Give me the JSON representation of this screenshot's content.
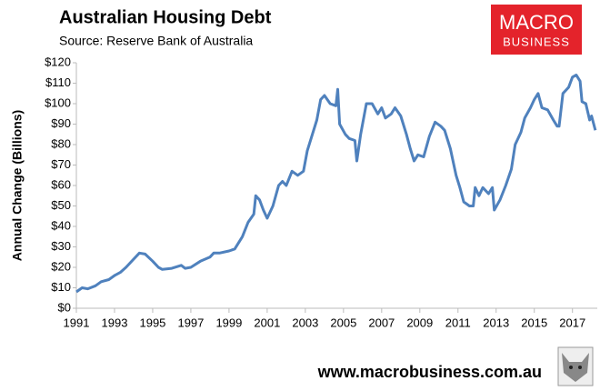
{
  "chart_data": {
    "type": "line",
    "title": "Australian Housing Debt",
    "subtitle": "Source: Reserve Bank of Australia",
    "y_label": "Annual Change (Billions)",
    "logo": [
      "MACRO",
      "BUSINESS"
    ],
    "footer": "www.macrobusiness.com.au",
    "xlim": [
      1991,
      2018.3
    ],
    "xticks": [
      1991,
      1993,
      1995,
      1997,
      1999,
      2001,
      2003,
      2005,
      2007,
      2009,
      2011,
      2013,
      2015,
      2017
    ],
    "ylim": [
      0,
      120
    ],
    "yticks": [
      {
        "value": 0,
        "label": "$0"
      },
      {
        "value": 10,
        "label": "$10"
      },
      {
        "value": 20,
        "label": "$20"
      },
      {
        "value": 30,
        "label": "$30"
      },
      {
        "value": 40,
        "label": "$40"
      },
      {
        "value": 50,
        "label": "$50"
      },
      {
        "value": 60,
        "label": "$60"
      },
      {
        "value": 70,
        "label": "$70"
      },
      {
        "value": 80,
        "label": "$80"
      },
      {
        "value": 90,
        "label": "$90"
      },
      {
        "value": 100,
        "label": "$100"
      },
      {
        "value": 110,
        "label": "$110"
      },
      {
        "value": 120,
        "label": "$120"
      }
    ],
    "grid": false,
    "color": "#4f81bd",
    "x": [
      1991.0,
      1991.3,
      1991.6,
      1992.0,
      1992.3,
      1992.7,
      1993.0,
      1993.3,
      1993.6,
      1994.0,
      1994.3,
      1994.6,
      1995.0,
      1995.3,
      1995.5,
      1996.0,
      1996.5,
      1996.7,
      1997.0,
      1997.5,
      1998.0,
      1998.2,
      1998.5,
      1999.0,
      1999.3,
      1999.7,
      2000.0,
      2000.3,
      2000.4,
      2000.6,
      2000.8,
      2001.0,
      2001.3,
      2001.6,
      2001.8,
      2002.0,
      2002.3,
      2002.6,
      2002.9,
      2003.1,
      2003.3,
      2003.6,
      2003.8,
      2004.0,
      2004.3,
      2004.6,
      2004.7,
      2004.8,
      2005.1,
      2005.3,
      2005.6,
      2005.7,
      2005.9,
      2006.2,
      2006.5,
      2006.8,
      2007.0,
      2007.2,
      2007.5,
      2007.7,
      2008.0,
      2008.3,
      2008.5,
      2008.7,
      2008.9,
      2009.2,
      2009.5,
      2009.8,
      2010.1,
      2010.3,
      2010.6,
      2010.9,
      2011.1,
      2011.3,
      2011.6,
      2011.8,
      2011.9,
      2012.1,
      2012.3,
      2012.6,
      2012.8,
      2012.9,
      2013.2,
      2013.5,
      2013.8,
      2014.0,
      2014.3,
      2014.5,
      2014.8,
      2015.0,
      2015.2,
      2015.4,
      2015.7,
      2016.0,
      2016.2,
      2016.3,
      2016.5,
      2016.8,
      2017.0,
      2017.2,
      2017.4,
      2017.5,
      2017.7,
      2017.9,
      2018.0,
      2018.2
    ],
    "values": [
      8,
      10,
      9.5,
      11,
      13,
      14,
      16,
      17.5,
      20,
      24,
      27,
      26.5,
      23,
      20,
      19,
      19.5,
      21,
      19.5,
      20,
      23,
      25,
      27,
      27,
      28,
      29,
      35,
      42,
      46,
      55,
      53,
      48,
      44,
      50,
      60,
      62,
      60,
      67,
      65,
      67,
      77,
      83,
      92,
      102,
      104,
      100,
      99,
      107,
      90,
      85,
      83,
      82,
      72,
      85,
      100,
      100,
      95,
      98,
      93,
      95,
      98,
      94,
      85,
      78,
      72,
      75,
      74,
      84,
      91,
      89,
      87,
      78,
      65,
      59,
      52,
      50,
      50,
      59,
      55,
      59,
      56,
      59,
      48,
      53,
      60,
      68,
      80,
      86,
      93,
      98,
      102,
      105,
      98,
      97,
      92,
      89,
      89,
      105,
      108,
      113,
      114,
      111,
      101,
      100,
      92,
      94,
      87
    ]
  }
}
